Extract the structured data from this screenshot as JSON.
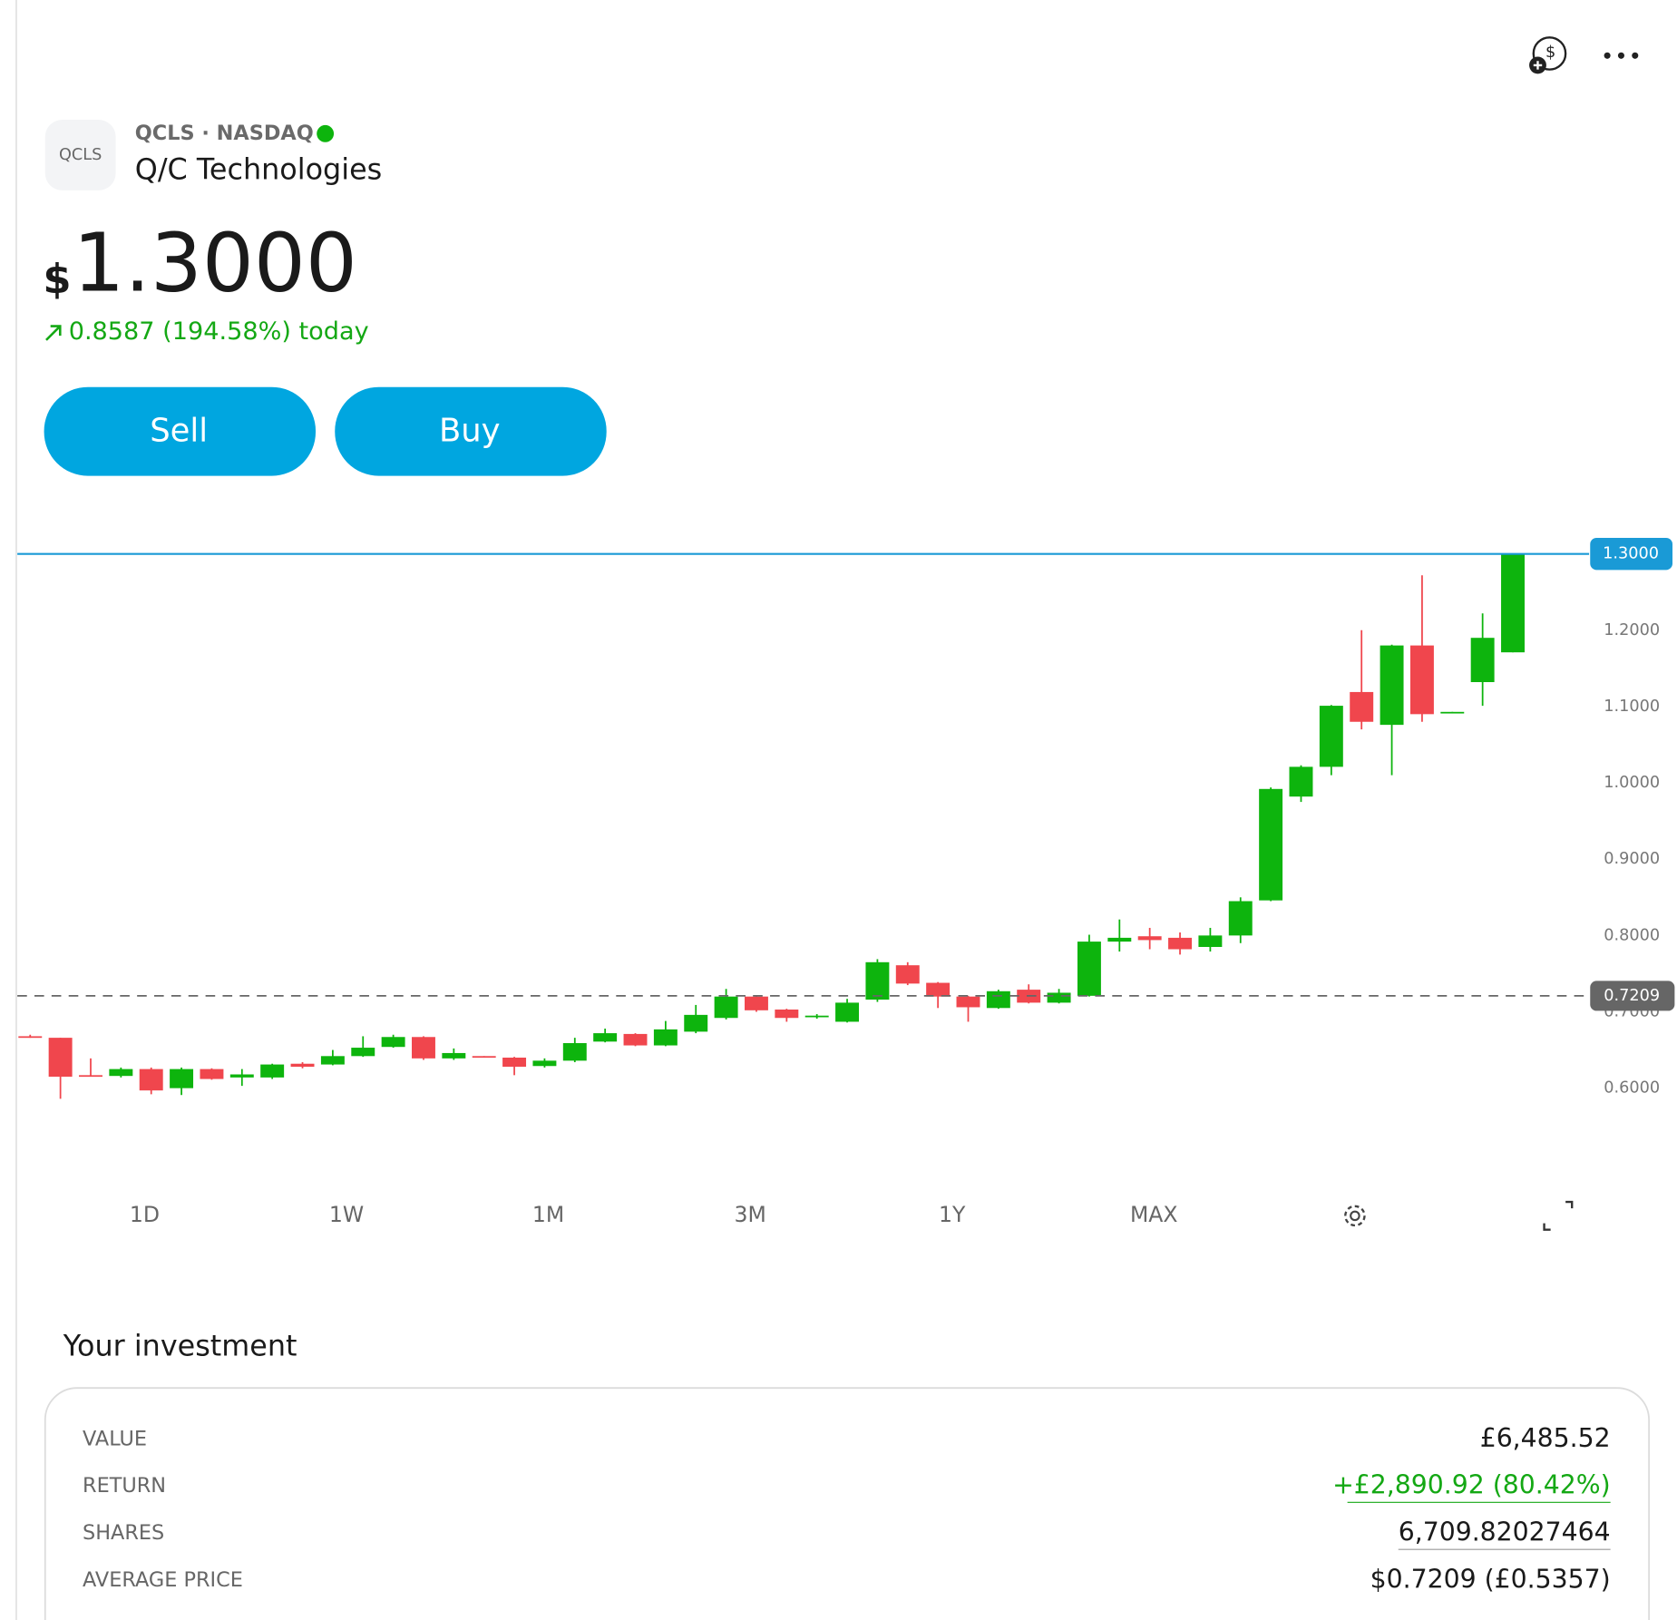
{
  "header": {
    "logo": "QCLS",
    "exchange": "QCLS · NASDAQ",
    "name": "Q/C Technologies"
  },
  "price": {
    "currency": "$",
    "value": "1.3000",
    "change": "0.8587 (194.58%) today"
  },
  "actions": [
    "Sell",
    "Buy"
  ],
  "chart_data": {
    "type": "candlestick",
    "categories": [
      null,
      null,
      null,
      null,
      null,
      null,
      null,
      null,
      null,
      null,
      null,
      null,
      null,
      null,
      null,
      null,
      null,
      null,
      null,
      null,
      null,
      null,
      null,
      null,
      null,
      null,
      null,
      null,
      null,
      null,
      null,
      null,
      null,
      null,
      null,
      null,
      null,
      null,
      null,
      null,
      null,
      null,
      null,
      null,
      null,
      null,
      null,
      null,
      null,
      null
    ],
    "open": [
      0.668,
      0.666,
      0.617,
      0.616,
      0.625,
      0.6,
      0.625,
      0.614,
      0.614,
      0.632,
      0.631,
      0.642,
      0.654,
      0.667,
      0.639,
      0.642,
      0.64,
      0.629,
      0.636,
      0.661,
      0.671,
      0.656,
      0.674,
      0.692,
      0.72,
      0.703,
      0.693,
      0.687,
      0.716,
      0.761,
      0.738,
      0.72,
      0.705,
      0.729,
      0.712,
      0.721,
      0.792,
      0.799,
      0.797,
      0.785,
      0.8,
      0.846,
      0.982,
      1.021,
      1.119,
      1.076,
      1.18,
      1.092,
      1.132,
      1.171
    ],
    "high": [
      0.67,
      0.666,
      0.639,
      0.627,
      0.627,
      0.627,
      0.626,
      0.625,
      0.632,
      0.634,
      0.65,
      0.668,
      0.67,
      0.668,
      0.652,
      0.642,
      0.641,
      0.639,
      0.666,
      0.678,
      0.672,
      0.688,
      0.709,
      0.73,
      0.722,
      0.704,
      0.697,
      0.717,
      0.769,
      0.765,
      0.739,
      0.721,
      0.729,
      0.736,
      0.73,
      0.801,
      0.821,
      0.81,
      0.804,
      0.81,
      0.85,
      0.994,
      1.023,
      1.102,
      1.2,
      1.181,
      1.272,
      1.093,
      1.222,
      1.3
    ],
    "low": [
      0.666,
      0.586,
      0.616,
      0.614,
      0.592,
      0.591,
      0.611,
      0.603,
      0.612,
      0.626,
      0.63,
      0.641,
      0.653,
      0.637,
      0.637,
      0.64,
      0.617,
      0.627,
      0.634,
      0.66,
      0.655,
      0.655,
      0.672,
      0.69,
      0.7,
      0.687,
      0.691,
      0.686,
      0.713,
      0.735,
      0.705,
      0.687,
      0.704,
      0.711,
      0.711,
      0.72,
      0.779,
      0.782,
      0.775,
      0.779,
      0.79,
      0.845,
      0.975,
      1.01,
      1.07,
      1.01,
      1.08,
      1.092,
      1.101,
      1.171
    ],
    "close": [
      0.667,
      0.615,
      0.616,
      0.625,
      0.597,
      0.625,
      0.612,
      0.618,
      0.631,
      0.628,
      0.642,
      0.653,
      0.667,
      0.639,
      0.646,
      0.641,
      0.628,
      0.636,
      0.659,
      0.672,
      0.656,
      0.677,
      0.696,
      0.72,
      0.702,
      0.692,
      0.695,
      0.712,
      0.765,
      0.737,
      0.72,
      0.706,
      0.727,
      0.712,
      0.725,
      0.792,
      0.797,
      0.794,
      0.782,
      0.8,
      0.845,
      0.992,
      1.021,
      1.101,
      1.08,
      1.18,
      1.09,
      1.093,
      1.19,
      1.3
    ],
    "up_color": "#0db40d",
    "down_color": "#f0464d",
    "ylim": [
      0.5,
      1.32
    ],
    "yticks": [
      {
        "value": 0.6,
        "label": "0.6000"
      },
      {
        "value": 0.7,
        "label": "0.7000"
      },
      {
        "value": 0.8,
        "label": "0.8000"
      },
      {
        "value": 0.9,
        "label": "0.9000"
      },
      {
        "value": 1.0,
        "label": "1.0000"
      },
      {
        "value": 1.1,
        "label": "1.1000"
      },
      {
        "value": 1.2,
        "label": "1.2000"
      }
    ],
    "current_price": {
      "value": 1.3,
      "label": "1.3000",
      "color": "#1a9ad6"
    },
    "reference_line": {
      "value": 0.7209,
      "label": "0.7209",
      "color": "#666666"
    }
  },
  "ranges": [
    "1D",
    "1W",
    "1M",
    "3M",
    "1Y",
    "MAX"
  ],
  "investment": {
    "title": "Your investment",
    "rows": [
      [
        "VALUE",
        "£6,485.52"
      ],
      [
        "RETURN",
        "+£2,890.92 (80.42%)"
      ],
      [
        "SHARES",
        "6,709.82027464"
      ],
      [
        "AVERAGE PRICE",
        "$0.7209 (£0.5357)"
      ]
    ]
  }
}
